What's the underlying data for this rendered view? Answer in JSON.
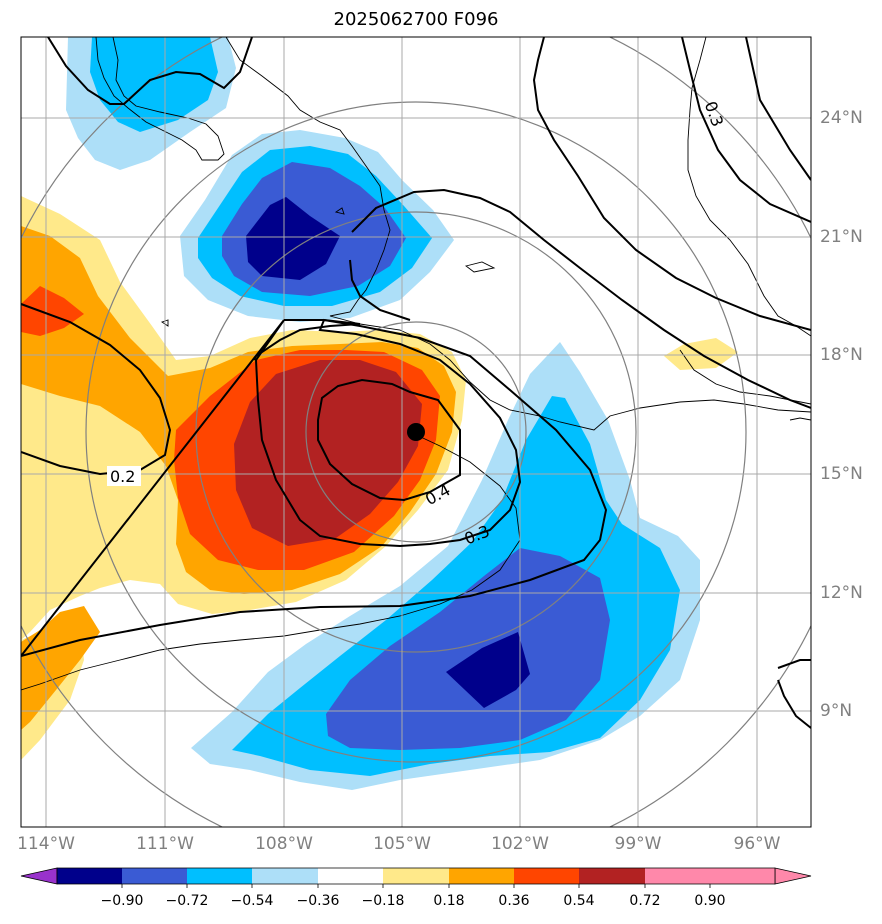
{
  "title": "2025062700 F096",
  "marker": {
    "lon": -104.7,
    "lat": 16.1
  },
  "longitude_labels": [
    "114°W",
    "111°W",
    "108°W",
    "105°W",
    "102°W",
    "99°W",
    "96°W"
  ],
  "latitude_labels": [
    "24°N",
    "21°N",
    "18°N",
    "15°N",
    "12°N",
    "9°N"
  ],
  "contour_labels": [
    "0.2",
    "0.4",
    "0.3",
    "0.3"
  ],
  "colorbar": {
    "ticks": [
      "−0.90",
      "−0.72",
      "−0.54",
      "−0.36",
      "−0.18",
      "0.18",
      "0.36",
      "0.54",
      "0.72",
      "0.90"
    ],
    "colors": [
      "#9932CC",
      "#00008B",
      "#3A5BD4",
      "#00BFFF",
      "#ADDFF8",
      "#FFFFFF",
      "#FFE98A",
      "#FFA500",
      "#FF4500",
      "#B22222",
      "#FF88AA"
    ]
  },
  "colors": {
    "neg_extreme": "#00008B",
    "neg_strong": "#3A5BD4",
    "neg_mid": "#00BFFF",
    "neg_weak": "#ADDFF8",
    "pos_weak": "#FFE98A",
    "pos_mid": "#FFA500",
    "pos_strong": "#FF4500",
    "pos_extreme": "#B22222",
    "grid": "#A9A9A9",
    "rings": "#808080"
  }
}
